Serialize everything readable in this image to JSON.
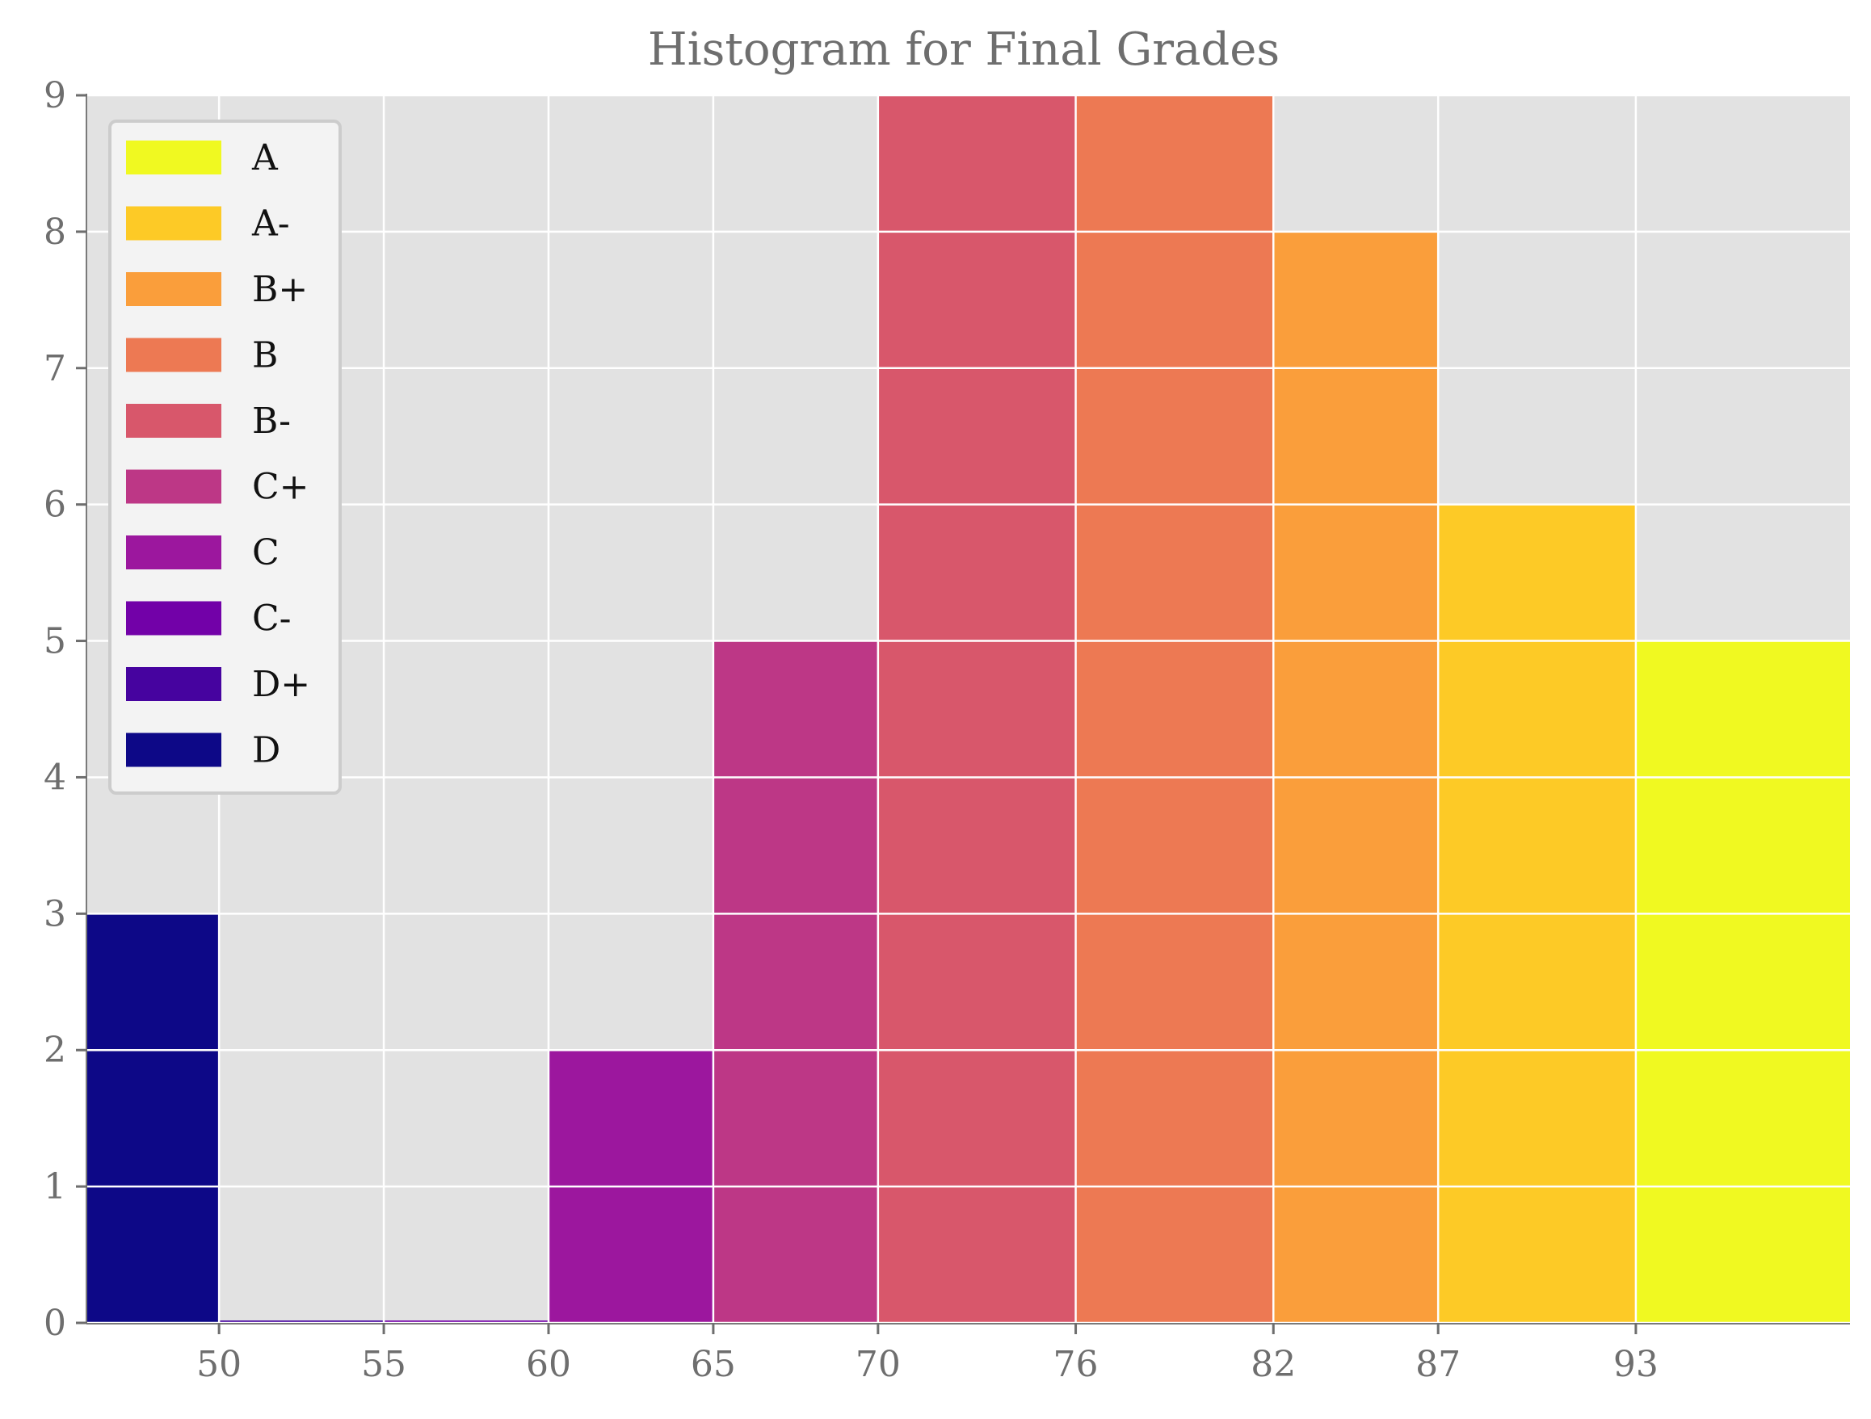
{
  "chart_data": {
    "type": "bar",
    "title": "Histogram for Final Grades",
    "xlabel": "",
    "ylabel": "",
    "xlim": [
      46,
      99.5
    ],
    "ylim": [
      0,
      9
    ],
    "x_ticks": [
      "50",
      "55",
      "60",
      "65",
      "70",
      "76",
      "82",
      "87",
      "93"
    ],
    "y_ticks": [
      "0",
      "1",
      "2",
      "3",
      "4",
      "5",
      "6",
      "7",
      "8",
      "9"
    ],
    "grid": true,
    "legend_position": "top-left",
    "bins": [
      {
        "label": "D",
        "from": 46,
        "to": 50,
        "count": 3,
        "color": "#0d0887"
      },
      {
        "label": "D+",
        "from": 50,
        "to": 55,
        "count": 0,
        "color": "#46039f"
      },
      {
        "label": "C-",
        "from": 55,
        "to": 60,
        "count": 0,
        "color": "#7201a8"
      },
      {
        "label": "C",
        "from": 60,
        "to": 65,
        "count": 2,
        "color": "#9c179e"
      },
      {
        "label": "C+",
        "from": 65,
        "to": 70,
        "count": 5,
        "color": "#bd3786"
      },
      {
        "label": "B-",
        "from": 70,
        "to": 76,
        "count": 9,
        "color": "#d8576b"
      },
      {
        "label": "B",
        "from": 76,
        "to": 82,
        "count": 9,
        "color": "#ed7953"
      },
      {
        "label": "B+",
        "from": 82,
        "to": 87,
        "count": 8,
        "color": "#fa9e3b"
      },
      {
        "label": "A-",
        "from": 87,
        "to": 93,
        "count": 6,
        "color": "#fdca26"
      },
      {
        "label": "A",
        "from": 93,
        "to": 99.5,
        "count": 5,
        "color": "#f0f921"
      }
    ],
    "legend": [
      "A",
      "A-",
      "B+",
      "B",
      "B-",
      "C+",
      "C",
      "C-",
      "D+",
      "D"
    ]
  },
  "colors": {
    "plot_background": "#e2e2e2",
    "grid": "#ffffff",
    "text": "#6e6e6e"
  }
}
